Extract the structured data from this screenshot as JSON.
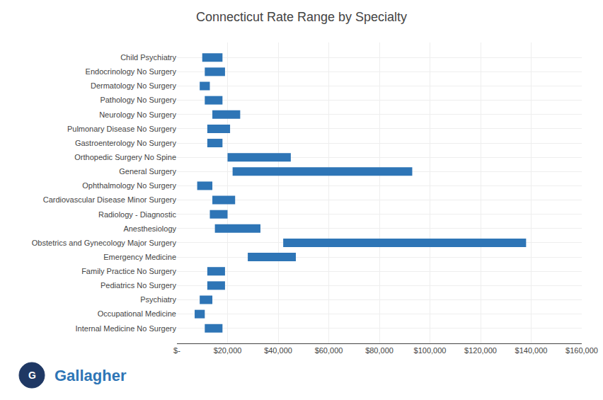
{
  "chart_data": {
    "type": "bar",
    "orientation": "horizontal",
    "title": "Connecticut Rate Range by Specialty",
    "categories": [
      "Child Psychiatry",
      "Endocrinology No Surgery",
      "Dermatology No Surgery",
      "Pathology No Surgery",
      "Neurology No Surgery",
      "Pulmonary Disease No Surgery",
      "Gastroenterology No Surgery",
      "Orthopedic Surgery No Spine",
      "General Surgery",
      "Ophthalmology No Surgery",
      "Cardiovascular Disease Minor Surgery",
      "Radiology - Diagnostic",
      "Anesthesiology",
      "Obstetrics and Gynecology Major Surgery",
      "Emergency Medicine",
      "Family Practice No Surgery",
      "Pediatrics No Surgery",
      "Psychiatry",
      "Occupational Medicine",
      "Internal Medicine No Surgery"
    ],
    "starts": [
      10000,
      11000,
      9000,
      11000,
      14000,
      12000,
      12000,
      20000,
      22000,
      8000,
      14000,
      13000,
      15000,
      42000,
      28000,
      12000,
      12000,
      9000,
      7000,
      11000
    ],
    "ends": [
      18000,
      19000,
      13000,
      18000,
      25000,
      21000,
      18000,
      45000,
      93000,
      14000,
      23000,
      20000,
      33000,
      138000,
      47000,
      19000,
      19000,
      14000,
      11000,
      18000
    ],
    "color": "#2e75b6",
    "xlim": [
      0,
      160000
    ],
    "xticks": [
      {
        "value": 0,
        "label": "$-"
      },
      {
        "value": 20000,
        "label": "$20,000"
      },
      {
        "value": 40000,
        "label": "$40,000"
      },
      {
        "value": 60000,
        "label": "$60,000"
      },
      {
        "value": 80000,
        "label": "$80,000"
      },
      {
        "value": 100000,
        "label": "$100,000"
      },
      {
        "value": 120000,
        "label": "$120,000"
      },
      {
        "value": 140000,
        "label": "$140,000"
      },
      {
        "value": 160000,
        "label": "$160,000"
      }
    ],
    "grid": true,
    "annotations": [
      {
        "text": "G"
      },
      {
        "text": "Gallagher",
        "color": "#2e75b6"
      }
    ]
  }
}
